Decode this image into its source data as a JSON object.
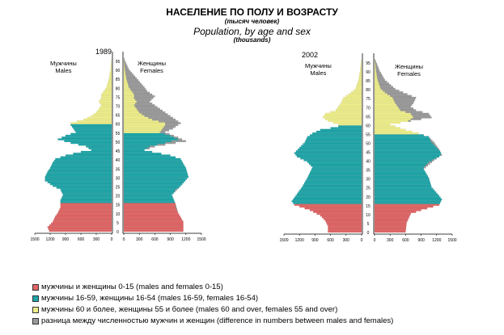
{
  "colors": {
    "young": "#e06464",
    "working": "#1fa5a8",
    "old": "#eeee8a",
    "diff": "#9a9a9a"
  },
  "chart_data": {
    "type": "bar",
    "title": "НАСЕЛЕНИЕ ПО ПОЛУ И ВОЗРАСТУ",
    "subtitle_ru": "(тысяч человек)",
    "subtitle_en": "Population, by age and sex",
    "units": "(thousands)",
    "x_ticks": [
      "1500",
      "1200",
      "900",
      "600",
      "300",
      "0"
    ],
    "x_ticks_f": [
      "0",
      "300",
      "600",
      "900",
      "1200",
      "1500"
    ],
    "y_ticks": [
      "0",
      "5",
      "10",
      "15",
      "20",
      "25",
      "30",
      "35",
      "40",
      "45",
      "50",
      "55",
      "60",
      "65",
      "70",
      "75",
      "80",
      "85",
      "90",
      "95"
    ],
    "xlim": [
      0,
      1500
    ],
    "ylim": [
      0,
      97
    ],
    "panels": [
      {
        "year": "1989",
        "males_label": "Мужчины\nMales",
        "females_label": "Женщины\nFemales",
        "males": [
          [
            0,
            1220
          ],
          [
            2,
            1250
          ],
          [
            5,
            1150
          ],
          [
            8,
            1100
          ],
          [
            10,
            1050
          ],
          [
            13,
            1000
          ],
          [
            15,
            1000
          ],
          [
            17,
            1000
          ],
          [
            20,
            950
          ],
          [
            23,
            1000
          ],
          [
            25,
            1150
          ],
          [
            28,
            1300
          ],
          [
            30,
            1300
          ],
          [
            33,
            1250
          ],
          [
            35,
            1200
          ],
          [
            38,
            1150
          ],
          [
            40,
            1100
          ],
          [
            42,
            900
          ],
          [
            44,
            600
          ],
          [
            45,
            400
          ],
          [
            47,
            500
          ],
          [
            49,
            800
          ],
          [
            51,
            1050
          ],
          [
            53,
            900
          ],
          [
            55,
            700
          ],
          [
            57,
            750
          ],
          [
            59,
            800
          ],
          [
            60,
            800
          ],
          [
            62,
            550
          ],
          [
            64,
            400
          ],
          [
            66,
            300
          ],
          [
            68,
            250
          ],
          [
            70,
            200
          ],
          [
            72,
            250
          ],
          [
            74,
            200
          ],
          [
            76,
            200
          ],
          [
            78,
            150
          ],
          [
            80,
            100
          ],
          [
            85,
            50
          ],
          [
            90,
            20
          ],
          [
            95,
            5
          ],
          [
            97,
            0
          ]
        ],
        "females": [
          [
            0,
            1150
          ],
          [
            5,
            1150
          ],
          [
            10,
            1050
          ],
          [
            15,
            1000
          ],
          [
            20,
            930
          ],
          [
            25,
            1100
          ],
          [
            30,
            1250
          ],
          [
            35,
            1200
          ],
          [
            40,
            1100
          ],
          [
            42,
            900
          ],
          [
            44,
            550
          ],
          [
            45,
            400
          ],
          [
            47,
            600
          ],
          [
            50,
            1200
          ],
          [
            52,
            1050
          ],
          [
            55,
            800
          ],
          [
            57,
            950
          ],
          [
            60,
            1100
          ],
          [
            62,
            1000
          ],
          [
            65,
            850
          ],
          [
            68,
            700
          ],
          [
            70,
            600
          ],
          [
            72,
            500
          ],
          [
            75,
            600
          ],
          [
            78,
            450
          ],
          [
            80,
            400
          ],
          [
            85,
            250
          ],
          [
            90,
            100
          ],
          [
            95,
            20
          ],
          [
            97,
            5
          ]
        ]
      },
      {
        "year": "2002",
        "males_label": "Мужчины\nMales",
        "females_label": "Женщины\nFemales",
        "males": [
          [
            0,
            650
          ],
          [
            3,
            650
          ],
          [
            6,
            700
          ],
          [
            9,
            800
          ],
          [
            12,
            1000
          ],
          [
            15,
            1300
          ],
          [
            17,
            1350
          ],
          [
            19,
            1300
          ],
          [
            21,
            1250
          ],
          [
            25,
            1150
          ],
          [
            30,
            1050
          ],
          [
            33,
            1000
          ],
          [
            36,
            950
          ],
          [
            39,
            1050
          ],
          [
            42,
            1250
          ],
          [
            44,
            1300
          ],
          [
            47,
            1200
          ],
          [
            50,
            1100
          ],
          [
            53,
            1050
          ],
          [
            55,
            950
          ],
          [
            57,
            800
          ],
          [
            58,
            600
          ],
          [
            59,
            450
          ],
          [
            60,
            450
          ],
          [
            62,
            650
          ],
          [
            64,
            750
          ],
          [
            66,
            700
          ],
          [
            68,
            500
          ],
          [
            70,
            450
          ],
          [
            72,
            400
          ],
          [
            75,
            350
          ],
          [
            78,
            200
          ],
          [
            80,
            120
          ],
          [
            85,
            60
          ],
          [
            90,
            30
          ],
          [
            95,
            10
          ],
          [
            97,
            0
          ]
        ],
        "females": [
          [
            0,
            600
          ],
          [
            5,
            620
          ],
          [
            10,
            700
          ],
          [
            12,
            900
          ],
          [
            15,
            1250
          ],
          [
            18,
            1300
          ],
          [
            20,
            1250
          ],
          [
            25,
            1100
          ],
          [
            30,
            1050
          ],
          [
            35,
            950
          ],
          [
            40,
            1150
          ],
          [
            43,
            1300
          ],
          [
            46,
            1250
          ],
          [
            50,
            1150
          ],
          [
            53,
            1050
          ],
          [
            55,
            850
          ],
          [
            57,
            600
          ],
          [
            59,
            400
          ],
          [
            60,
            300
          ],
          [
            62,
            700
          ],
          [
            64,
            1100
          ],
          [
            66,
            1050
          ],
          [
            68,
            800
          ],
          [
            70,
            700
          ],
          [
            72,
            750
          ],
          [
            75,
            800
          ],
          [
            78,
            550
          ],
          [
            80,
            400
          ],
          [
            85,
            200
          ],
          [
            90,
            100
          ],
          [
            95,
            30
          ],
          [
            97,
            8
          ]
        ]
      }
    ],
    "legend": [
      {
        "key": "young",
        "label": "мужчины и женщины 0-15 (males and females 0-15)"
      },
      {
        "key": "working",
        "label": "мужчины 16-59, женщины 16-54 (males 16-59, females 16-54)"
      },
      {
        "key": "old",
        "label": "мужчины 60 и более, женщины 55 и более (males 60 and over, females 55 and over)"
      },
      {
        "key": "diff",
        "label": "разница между численностью мужчин и женщин (difference in numbers between males and females)"
      }
    ],
    "legend_position": "bottom-left"
  }
}
